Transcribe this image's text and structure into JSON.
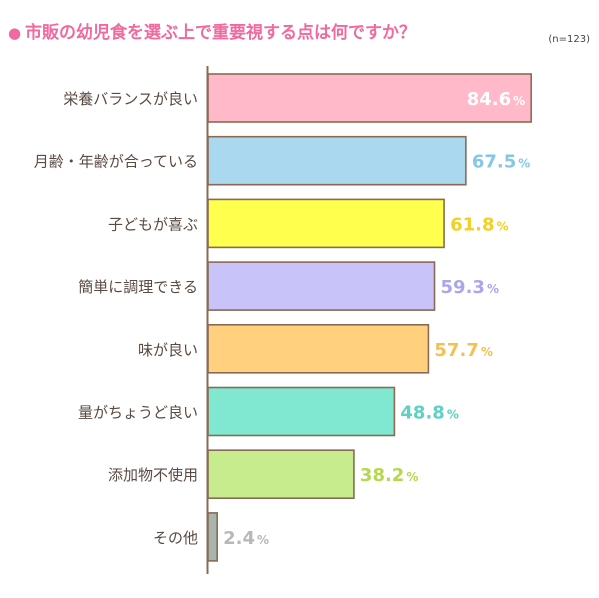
{
  "title": "市販の幼児食を選ぶ上で重要視する点は何ですか？",
  "title_marker": "●",
  "note": "(n=123)",
  "colors": {
    "title": "#f06aa0",
    "bar_stroke": "#8a6a55",
    "axis": "#8a6a55",
    "label": "#5a4a42"
  },
  "chart_data": {
    "type": "bar",
    "orientation": "horizontal",
    "title": "市販の幼児食を選ぶ上で重要視する点は何ですか？",
    "note": "(n=123)",
    "categories": [
      "栄養バランスが良い",
      "月齢・年齢が合っている",
      "子どもが喜ぶ",
      "簡単に調理できる",
      "味が良い",
      "量がちょうど良い",
      "添加物不使用",
      "その他"
    ],
    "values": [
      84.6,
      67.5,
      61.8,
      59.3,
      57.7,
      48.8,
      38.2,
      2.4
    ],
    "value_labels": [
      "84.6",
      "67.5",
      "61.8",
      "59.3",
      "57.7",
      "48.8",
      "38.2",
      "2.4"
    ],
    "unit": "%",
    "xlim": [
      0,
      100
    ],
    "grid": false,
    "legend": "none",
    "bar_colors": [
      "#ffb9c8",
      "#a9d8ef",
      "#ffff4d",
      "#c8c4fa",
      "#ffd17f",
      "#80e8d0",
      "#c6ec8e",
      "#a6b6ae"
    ],
    "label_colors": [
      "#ffffff",
      "#86c7e8",
      "#f2d024",
      "#aaa6ee",
      "#f5c050",
      "#5ed0c4",
      "#b4d84e",
      "#b6bab6"
    ]
  }
}
